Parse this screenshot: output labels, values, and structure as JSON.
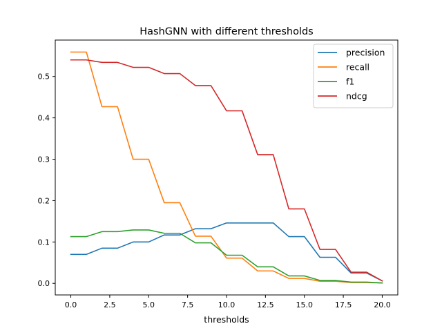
{
  "chart_data": {
    "type": "line",
    "title": "HashGNN with different thresholds",
    "xlabel": "thresholds",
    "ylabel": "",
    "xlim": [
      -1.0,
      21.0
    ],
    "ylim": [
      -0.028,
      0.588
    ],
    "x_ticks": [
      0.0,
      2.5,
      5.0,
      7.5,
      10.0,
      12.5,
      15.0,
      17.5,
      20.0
    ],
    "x_tick_labels": [
      "0.0",
      "2.5",
      "5.0",
      "7.5",
      "10.0",
      "12.5",
      "15.0",
      "17.5",
      "20.0"
    ],
    "y_ticks": [
      0.0,
      0.1,
      0.2,
      0.3,
      0.4,
      0.5
    ],
    "y_tick_labels": [
      "0.0",
      "0.1",
      "0.2",
      "0.3",
      "0.4",
      "0.5"
    ],
    "grid": false,
    "legend_position": "top-right",
    "x": [
      0,
      1,
      2,
      3,
      4,
      5,
      6,
      7,
      8,
      9,
      10,
      11,
      12,
      13,
      14,
      15,
      16,
      17,
      18,
      19,
      20
    ],
    "series": [
      {
        "name": "precision",
        "color": "#1f77b4",
        "values": [
          0.07,
          0.07,
          0.085,
          0.085,
          0.1,
          0.1,
          0.117,
          0.117,
          0.132,
          0.132,
          0.146,
          0.146,
          0.146,
          0.146,
          0.113,
          0.113,
          0.063,
          0.063,
          0.025,
          0.025,
          0.006
        ]
      },
      {
        "name": "recall",
        "color": "#ff7f0e",
        "values": [
          0.559,
          0.559,
          0.427,
          0.427,
          0.3,
          0.3,
          0.195,
          0.195,
          0.114,
          0.114,
          0.061,
          0.061,
          0.03,
          0.03,
          0.012,
          0.012,
          0.005,
          0.005,
          0.002,
          0.002,
          0.001
        ]
      },
      {
        "name": "f1",
        "color": "#2ca02c",
        "values": [
          0.113,
          0.113,
          0.125,
          0.125,
          0.129,
          0.129,
          0.121,
          0.121,
          0.098,
          0.098,
          0.068,
          0.068,
          0.04,
          0.04,
          0.018,
          0.018,
          0.007,
          0.007,
          0.003,
          0.003,
          0.001
        ]
      },
      {
        "name": "ndcg",
        "color": "#d62728",
        "values": [
          0.54,
          0.54,
          0.534,
          0.534,
          0.522,
          0.522,
          0.507,
          0.507,
          0.478,
          0.478,
          0.417,
          0.417,
          0.311,
          0.311,
          0.18,
          0.18,
          0.082,
          0.082,
          0.027,
          0.027,
          0.006
        ]
      }
    ]
  }
}
